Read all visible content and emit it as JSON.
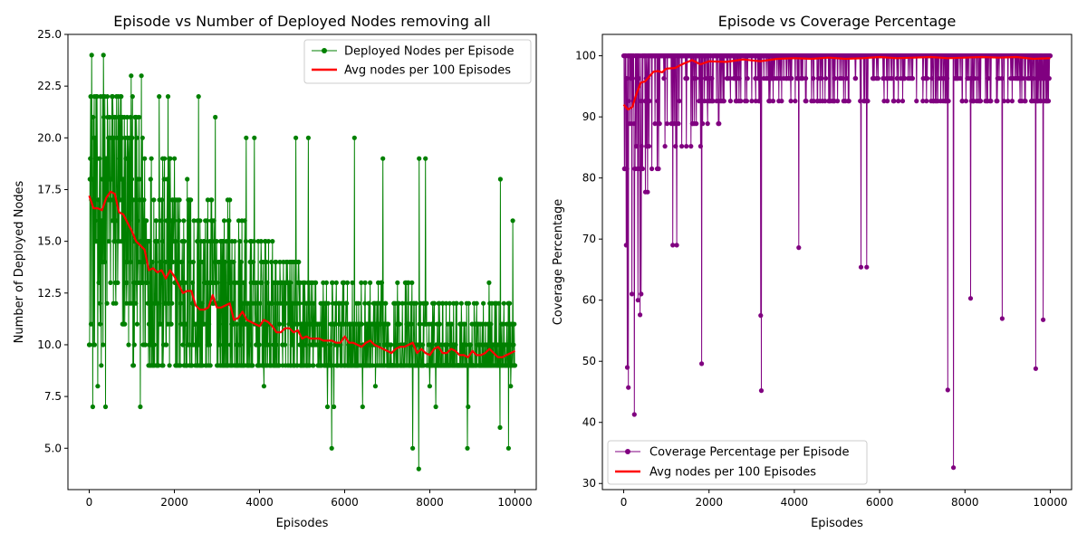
{
  "colors": {
    "series_nodes": "#008000",
    "series_coverage": "#800080",
    "average_line": "#ff0000",
    "axes": "#000000",
    "legend_border": "#cccccc"
  },
  "chart_data": [
    {
      "type": "line",
      "title": "Episode vs Number of Deployed Nodes removing all",
      "xlabel": "Episodes",
      "ylabel": "Number of Deployed Nodes",
      "xlim": [
        -500,
        10500
      ],
      "ylim": [
        3.0,
        25.0
      ],
      "xticks": [
        0,
        2000,
        4000,
        6000,
        8000,
        10000
      ],
      "xtick_labels": [
        "0",
        "2000",
        "4000",
        "6000",
        "8000",
        "10000"
      ],
      "yticks": [
        5.0,
        7.5,
        10.0,
        12.5,
        15.0,
        17.5,
        20.0,
        22.5,
        25.0
      ],
      "ytick_labels": [
        "5.0",
        "7.5",
        "10.0",
        "12.5",
        "15.0",
        "17.5",
        "20.0",
        "22.5",
        "25.0"
      ],
      "grid": false,
      "legend_position": "upper right",
      "raw_series": {
        "name": "Deployed Nodes per Episode",
        "marker": "circle",
        "episodes": 10000,
        "spikes": [
          {
            "x": 60,
            "y": 24
          },
          {
            "x": 330,
            "y": 24
          },
          {
            "x": 980,
            "y": 23
          },
          {
            "x": 1230,
            "y": 23
          },
          {
            "x": 1640,
            "y": 22
          },
          {
            "x": 1850,
            "y": 22
          },
          {
            "x": 2570,
            "y": 22
          },
          {
            "x": 2960,
            "y": 21
          },
          {
            "x": 3690,
            "y": 20
          },
          {
            "x": 3880,
            "y": 20
          },
          {
            "x": 4850,
            "y": 20
          },
          {
            "x": 5150,
            "y": 20
          },
          {
            "x": 6230,
            "y": 20
          },
          {
            "x": 6900,
            "y": 19
          },
          {
            "x": 7750,
            "y": 19
          },
          {
            "x": 7900,
            "y": 19
          },
          {
            "x": 9660,
            "y": 18
          },
          {
            "x": 9950,
            "y": 16
          }
        ],
        "dips": [
          {
            "x": 80,
            "y": 7
          },
          {
            "x": 200,
            "y": 8
          },
          {
            "x": 380,
            "y": 7
          },
          {
            "x": 1200,
            "y": 7
          },
          {
            "x": 4100,
            "y": 8
          },
          {
            "x": 5600,
            "y": 7
          },
          {
            "x": 5700,
            "y": 5
          },
          {
            "x": 5750,
            "y": 7
          },
          {
            "x": 6420,
            "y": 7
          },
          {
            "x": 6720,
            "y": 8
          },
          {
            "x": 7600,
            "y": 5
          },
          {
            "x": 7740,
            "y": 4
          },
          {
            "x": 8000,
            "y": 8
          },
          {
            "x": 8140,
            "y": 7
          },
          {
            "x": 8880,
            "y": 5
          },
          {
            "x": 8900,
            "y": 7
          },
          {
            "x": 9650,
            "y": 6
          },
          {
            "x": 9850,
            "y": 5
          },
          {
            "x": 9900,
            "y": 8
          }
        ]
      },
      "avg_series": {
        "name": "Avg nodes per 100 Episodes",
        "x": [
          0,
          100,
          200,
          300,
          400,
          500,
          600,
          700,
          800,
          900,
          1000,
          1100,
          1200,
          1300,
          1400,
          1500,
          1600,
          1700,
          1800,
          1900,
          2000,
          2100,
          2200,
          2300,
          2400,
          2500,
          2600,
          2700,
          2800,
          2900,
          3000,
          3100,
          3200,
          3300,
          3400,
          3500,
          3600,
          3700,
          3800,
          3900,
          4000,
          4100,
          4200,
          4300,
          4400,
          4500,
          4600,
          4700,
          4800,
          4900,
          5000,
          5100,
          5200,
          5300,
          5400,
          5500,
          5600,
          5700,
          5800,
          5900,
          6000,
          6100,
          6200,
          6300,
          6400,
          6500,
          6600,
          6700,
          6800,
          6900,
          7000,
          7100,
          7200,
          7300,
          7400,
          7500,
          7600,
          7700,
          7800,
          7900,
          8000,
          8100,
          8200,
          8300,
          8400,
          8500,
          8600,
          8700,
          8800,
          8900,
          9000,
          9100,
          9200,
          9300,
          9400,
          9500,
          9600,
          9700,
          9800,
          9900,
          10000
        ],
        "y": [
          17.2,
          16.6,
          16.6,
          16.5,
          17.1,
          17.4,
          17.3,
          16.4,
          16.3,
          15.9,
          15.5,
          15.0,
          14.8,
          14.6,
          13.6,
          13.7,
          13.5,
          13.6,
          13.2,
          13.6,
          13.3,
          12.9,
          12.5,
          12.6,
          12.6,
          11.9,
          11.7,
          11.7,
          11.8,
          12.4,
          11.8,
          11.8,
          11.9,
          12.0,
          11.2,
          11.3,
          11.6,
          11.2,
          11.1,
          11.0,
          10.9,
          11.2,
          11.1,
          10.9,
          10.6,
          10.6,
          10.8,
          10.8,
          10.6,
          10.7,
          10.3,
          10.4,
          10.3,
          10.3,
          10.3,
          10.2,
          10.2,
          10.2,
          10.1,
          10.1,
          10.4,
          10.1,
          10.1,
          10.0,
          9.9,
          10.1,
          10.2,
          10.0,
          9.9,
          9.8,
          9.7,
          9.6,
          9.8,
          9.9,
          9.9,
          10.0,
          10.1,
          9.6,
          9.8,
          9.6,
          9.5,
          9.8,
          9.9,
          9.6,
          9.6,
          9.8,
          9.7,
          9.5,
          9.5,
          9.4,
          9.7,
          9.5,
          9.5,
          9.6,
          9.8,
          9.6,
          9.4,
          9.4,
          9.5,
          9.6,
          9.7
        ]
      },
      "legend": [
        "Deployed Nodes per Episode",
        "Avg nodes per 100 Episodes"
      ]
    },
    {
      "type": "line",
      "title": "Episode vs Coverage Percentage",
      "xlabel": "Episodes",
      "ylabel": "Coverage Percentage",
      "xlim": [
        -500,
        10500
      ],
      "ylim": [
        29.0,
        103.5
      ],
      "xticks": [
        0,
        2000,
        4000,
        6000,
        8000,
        10000
      ],
      "xtick_labels": [
        "0",
        "2000",
        "4000",
        "6000",
        "8000",
        "10000"
      ],
      "yticks": [
        30,
        40,
        50,
        60,
        70,
        80,
        90,
        100
      ],
      "ytick_labels": [
        "30",
        "40",
        "50",
        "60",
        "70",
        "80",
        "90",
        "100"
      ],
      "grid": false,
      "legend_position": "lower left",
      "raw_series": {
        "name": "Coverage Percentage per Episode",
        "marker": "circle",
        "episodes": 10000,
        "dips": [
          {
            "x": 60,
            "y": 69.0
          },
          {
            "x": 80,
            "y": 49.0
          },
          {
            "x": 110,
            "y": 45.7
          },
          {
            "x": 190,
            "y": 61.0
          },
          {
            "x": 250,
            "y": 41.3
          },
          {
            "x": 330,
            "y": 60.0
          },
          {
            "x": 380,
            "y": 57.6
          },
          {
            "x": 410,
            "y": 61.0
          },
          {
            "x": 1150,
            "y": 69.0
          },
          {
            "x": 1240,
            "y": 69.0
          },
          {
            "x": 1830,
            "y": 49.6
          },
          {
            "x": 3210,
            "y": 57.5
          },
          {
            "x": 3230,
            "y": 45.2
          },
          {
            "x": 4100,
            "y": 68.6
          },
          {
            "x": 5560,
            "y": 65.4
          },
          {
            "x": 5700,
            "y": 65.4
          },
          {
            "x": 7600,
            "y": 45.3
          },
          {
            "x": 7730,
            "y": 32.6
          },
          {
            "x": 8130,
            "y": 60.3
          },
          {
            "x": 8870,
            "y": 57.0
          },
          {
            "x": 9660,
            "y": 48.8
          },
          {
            "x": 9830,
            "y": 56.8
          }
        ]
      },
      "avg_series": {
        "name": "Avg nodes per 100 Episodes",
        "x": [
          0,
          100,
          200,
          300,
          400,
          500,
          600,
          700,
          800,
          900,
          1000,
          1200,
          1400,
          1600,
          1800,
          2000,
          2400,
          2800,
          3200,
          3600,
          4000,
          4400,
          4800,
          5200,
          5600,
          6000,
          6400,
          6800,
          7200,
          7600,
          8000,
          8400,
          8800,
          9200,
          9600,
          10000
        ],
        "y": [
          92.0,
          91.2,
          91.6,
          93.8,
          95.6,
          95.8,
          96.6,
          97.4,
          97.5,
          97.3,
          97.9,
          98.0,
          98.7,
          99.3,
          98.6,
          99.1,
          99.0,
          99.4,
          99.1,
          99.5,
          99.6,
          99.5,
          99.7,
          99.5,
          99.6,
          99.8,
          99.6,
          99.7,
          99.8,
          99.6,
          99.7,
          99.8,
          99.7,
          99.8,
          99.5,
          99.6
        ]
      },
      "legend": [
        "Coverage Percentage per Episode",
        "Avg nodes per 100 Episodes"
      ]
    }
  ]
}
